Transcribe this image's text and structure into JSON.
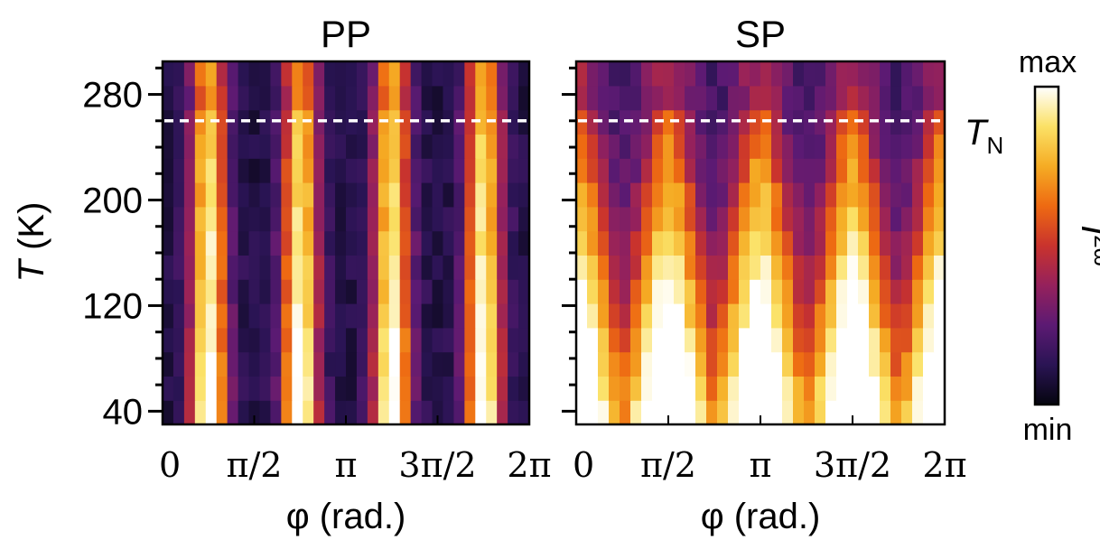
{
  "chart_data": [
    {
      "type": "heatmap",
      "title": "PP",
      "xlabel": "φ (rad.)",
      "ylabel": "T (K)",
      "xlim": [
        0,
        6.2832
      ],
      "ylim": [
        30,
        305
      ],
      "x_ticks": [
        {
          "value": 0,
          "label": "0"
        },
        {
          "value": 1.5708,
          "label": "π/2"
        },
        {
          "value": 3.1416,
          "label": "π"
        },
        {
          "value": 4.7124,
          "label": "3π/2"
        },
        {
          "value": 6.2832,
          "label": "2π"
        }
      ],
      "y_ticks": [
        {
          "value": 40,
          "label": "40"
        },
        {
          "value": 120,
          "label": "120"
        },
        {
          "value": 200,
          "label": "200"
        },
        {
          "value": 280,
          "label": "280"
        }
      ],
      "model": {
        "pattern": "narrow",
        "peaks_phi": [
          0.79,
          2.36,
          3.93,
          5.5
        ]
      },
      "annotation": {
        "type": "dashed-hline",
        "y": 260,
        "label": "T",
        "label_sub": "N"
      }
    },
    {
      "type": "heatmap",
      "title": "SP",
      "xlabel": "φ (rad.)",
      "ylabel": "",
      "xlim": [
        0,
        6.2832
      ],
      "ylim": [
        30,
        305
      ],
      "x_ticks": [
        {
          "value": 0,
          "label": "0"
        },
        {
          "value": 1.5708,
          "label": "π/2"
        },
        {
          "value": 3.1416,
          "label": "π"
        },
        {
          "value": 4.7124,
          "label": "3π/2"
        },
        {
          "value": 6.2832,
          "label": "2π"
        }
      ],
      "model": {
        "pattern": "broad",
        "peaks_phi": [
          0,
          1.5708,
          3.1416,
          4.7124,
          6.2832
        ]
      },
      "annotation": {
        "type": "dashed-hline",
        "y": 260
      }
    }
  ],
  "colorbar": {
    "label": "I",
    "label_sup": "2ω",
    "max_label": "max",
    "min_label": "min",
    "colormap": [
      "#05050f",
      "#2a1454",
      "#5c1a73",
      "#95215c",
      "#c9332d",
      "#ee6a12",
      "#f5ac24",
      "#fbe166",
      "#ffffff"
    ]
  }
}
